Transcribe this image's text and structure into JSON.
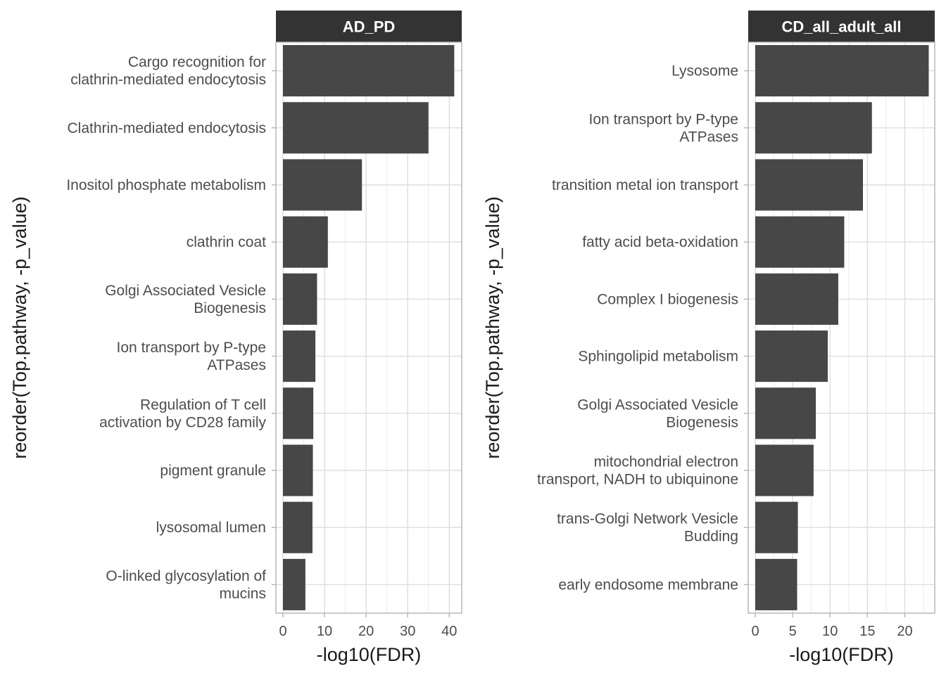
{
  "chart_data": [
    {
      "type": "bar",
      "orientation": "horizontal",
      "title": "AD_PD",
      "xlabel": "-log10(FDR)",
      "ylabel": "reorder(Top.pathway, -p_value)",
      "xlim": [
        0,
        43
      ],
      "xticks": [
        0,
        10,
        20,
        30,
        40
      ],
      "grid": true,
      "categories": [
        "Cargo recognition for\nclathrin-mediated endocytosis",
        "Clathrin-mediated endocytosis",
        "Inositol phosphate metabolism",
        "clathrin coat",
        "Golgi Associated Vesicle\nBiogenesis",
        "Ion transport by P-type\nATPases",
        "Regulation of T cell\nactivation by CD28 family",
        "pigment granule",
        "lysosomal lumen",
        "O-linked glycosylation of\nmucins"
      ],
      "values": [
        41.2,
        35.0,
        19.0,
        10.8,
        8.2,
        7.8,
        7.3,
        7.2,
        7.1,
        5.4
      ]
    },
    {
      "type": "bar",
      "orientation": "horizontal",
      "title": "CD_all_adult_all",
      "xlabel": "-log10(FDR)",
      "ylabel": "reorder(Top.pathway, -p_value)",
      "xlim": [
        0,
        24
      ],
      "xticks": [
        0,
        5,
        10,
        15,
        20
      ],
      "grid": true,
      "categories": [
        "Lysosome",
        "Ion transport by P-type\nATPases",
        "transition metal ion transport",
        "fatty acid beta-oxidation",
        "Complex I biogenesis",
        "Sphingolipid metabolism",
        "Golgi Associated Vesicle\nBiogenesis",
        "mitochondrial electron\ntransport, NADH to ubiquinone",
        "trans-Golgi Network Vesicle\nBudding",
        "early endosome membrane"
      ],
      "values": [
        23.2,
        15.6,
        14.4,
        11.9,
        11.1,
        9.7,
        8.1,
        7.8,
        5.7,
        5.6
      ]
    }
  ]
}
